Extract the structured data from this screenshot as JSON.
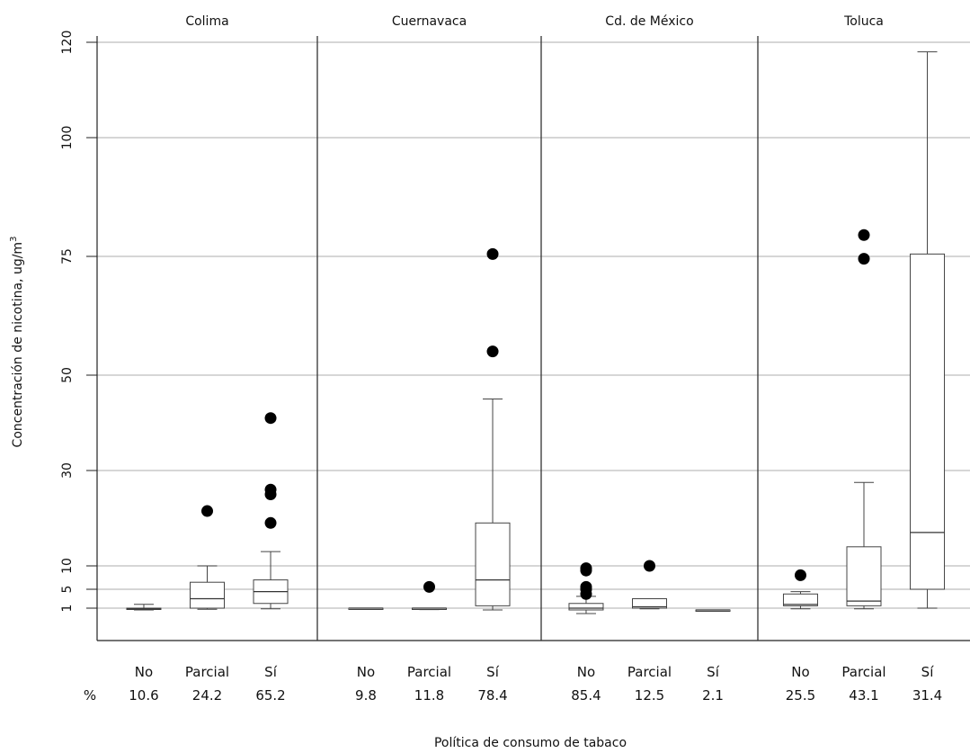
{
  "chart_data": {
    "type": "box",
    "ylabel": "Concentración de nicotina, ug/m",
    "ylabel_sup": "3",
    "xlabel": "Política de consumo de tabaco",
    "y_ticks": [
      1,
      5,
      10,
      30,
      50,
      75,
      100,
      120
    ],
    "ylim": [
      -5,
      121
    ],
    "grid": true,
    "percent_label": "%",
    "panels": [
      {
        "title": "Colima",
        "groups": [
          {
            "category": "No",
            "percent": "10.6",
            "min": 0.5,
            "q1": 0.7,
            "median": 0.8,
            "q3": 1.0,
            "max": 1.8,
            "outliers": []
          },
          {
            "category": "Parcial",
            "percent": "24.2",
            "min": 0.7,
            "q1": 1.0,
            "median": 3.0,
            "q3": 6.5,
            "max": 10.0,
            "outliers": [
              21.5
            ]
          },
          {
            "category": "Sí",
            "percent": "65.2",
            "min": 0.8,
            "q1": 2.0,
            "median": 4.5,
            "q3": 7.0,
            "max": 13.0,
            "outliers": [
              19.0,
              25.0,
              26.0,
              41.0
            ]
          }
        ]
      },
      {
        "title": "Cuernavaca",
        "groups": [
          {
            "category": "No",
            "percent": "9.8",
            "min": 1.0,
            "q1": 1.0,
            "median": 1.0,
            "q3": 1.0,
            "max": 1.0,
            "outliers": []
          },
          {
            "category": "Parcial",
            "percent": "11.8",
            "min": 0.6,
            "q1": 0.8,
            "median": 1.0,
            "q3": 1.0,
            "max": 1.0,
            "outliers": [
              5.5
            ]
          },
          {
            "category": "Sí",
            "percent": "78.4",
            "min": 0.5,
            "q1": 1.5,
            "median": 7.0,
            "q3": 19.0,
            "max": 45.0,
            "outliers": [
              55.0,
              75.5
            ]
          }
        ]
      },
      {
        "title": "Cd. de México",
        "groups": [
          {
            "category": "No",
            "percent": "85.4",
            "min": -0.5,
            "q1": 0.5,
            "median": 1.0,
            "q3": 2.0,
            "max": 3.5,
            "outliers": [
              4.0,
              5.0,
              5.5,
              9.0,
              9.5
            ]
          },
          {
            "category": "Parcial",
            "percent": "12.5",
            "min": 0.8,
            "q1": 1.0,
            "median": 1.3,
            "q3": 3.0,
            "max": 3.0,
            "outliers": [
              10.0
            ]
          },
          {
            "category": "Sí",
            "percent": "2.1",
            "min": 0.5,
            "q1": 0.5,
            "median": 0.5,
            "q3": 0.5,
            "max": 0.5,
            "outliers": []
          }
        ]
      },
      {
        "title": "Toluca",
        "groups": [
          {
            "category": "No",
            "percent": "25.5",
            "min": 0.8,
            "q1": 1.5,
            "median": 1.8,
            "q3": 4.0,
            "max": 4.5,
            "outliers": [
              8.0
            ]
          },
          {
            "category": "Parcial",
            "percent": "43.1",
            "min": 0.8,
            "q1": 1.5,
            "median": 2.5,
            "q3": 14.0,
            "max": 27.5,
            "outliers": [
              74.5,
              79.5
            ]
          },
          {
            "category": "Sí",
            "percent": "31.4",
            "min": 1.0,
            "q1": 5.0,
            "median": 17.0,
            "q3": 75.5,
            "max": 118.0,
            "outliers": []
          }
        ]
      }
    ]
  }
}
